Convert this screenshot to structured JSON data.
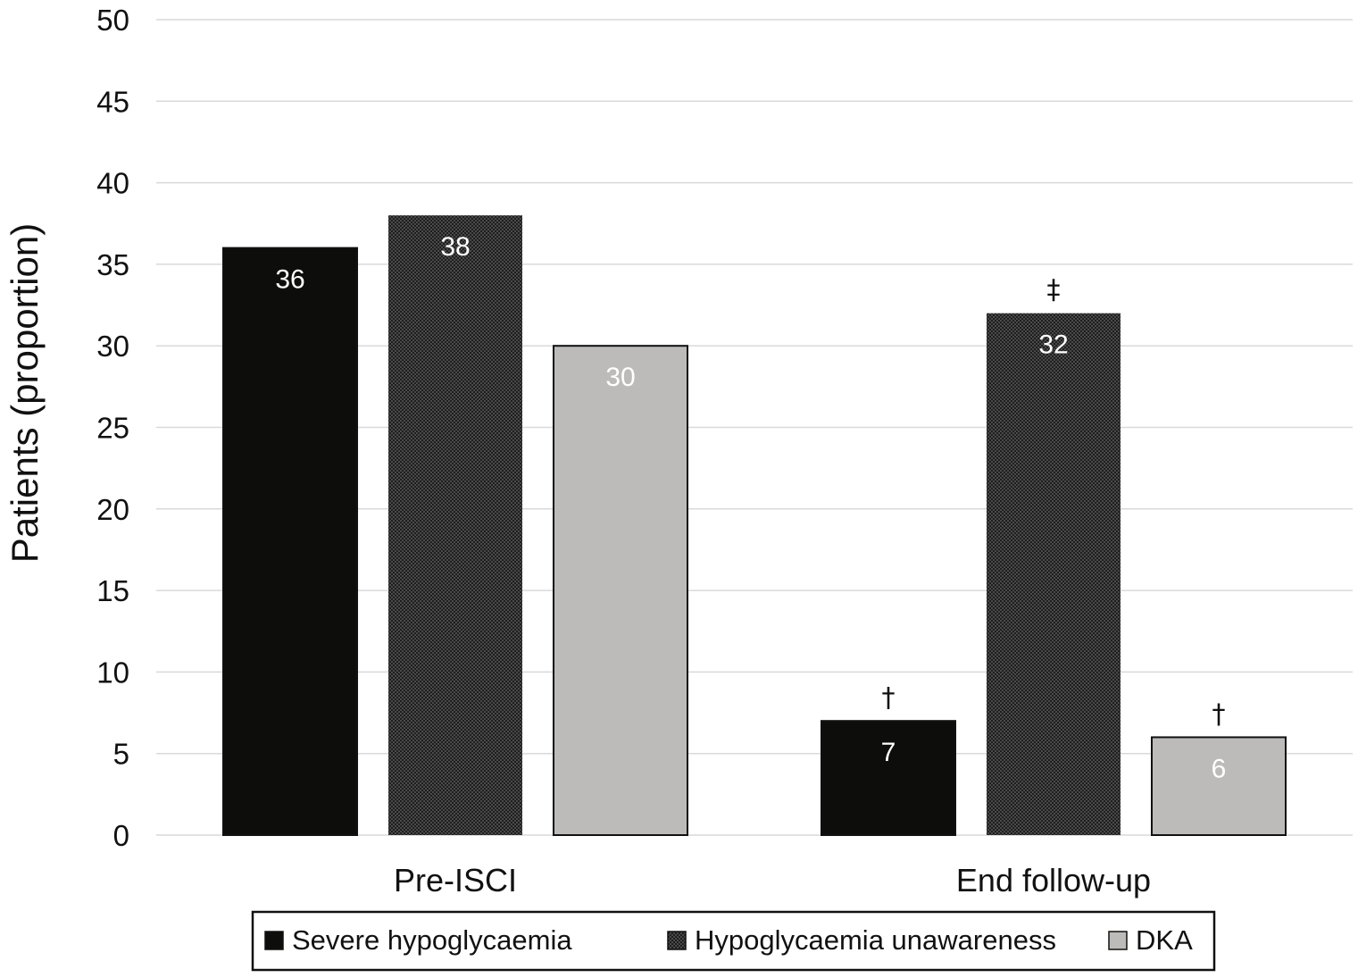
{
  "chart_data": {
    "type": "bar",
    "title": "",
    "xlabel": "",
    "ylabel": "Patients (proportion)",
    "categories": [
      "Pre-ISCI",
      "End follow-up"
    ],
    "ylim": [
      0,
      50
    ],
    "yticks": [
      0,
      5,
      10,
      15,
      20,
      25,
      30,
      35,
      40,
      45,
      50
    ],
    "grid": true,
    "legend_position": "bottom",
    "series": [
      {
        "name": "Severe hypoglycaemia",
        "values": [
          36,
          7
        ],
        "color": "#0d0d0b",
        "pattern": "solid",
        "annotations": [
          "",
          "†"
        ]
      },
      {
        "name": "Hypoglycaemia unawareness",
        "values": [
          38,
          32
        ],
        "color": "#3a3a3a",
        "pattern": "dotted",
        "annotations": [
          "",
          "‡"
        ]
      },
      {
        "name": "DKA",
        "values": [
          30,
          6
        ],
        "color": "#bdbbba",
        "pattern": "solid",
        "annotations": [
          "",
          "†"
        ]
      }
    ]
  }
}
